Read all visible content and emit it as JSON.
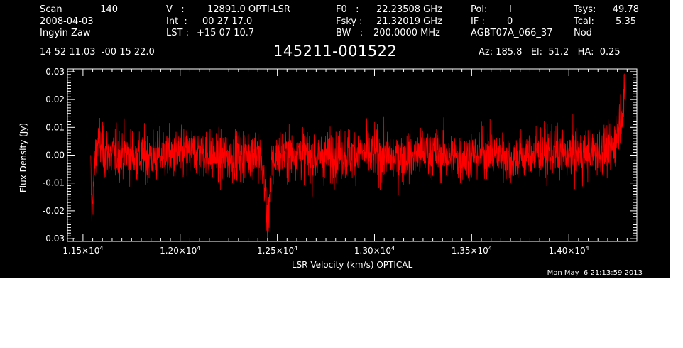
{
  "header": {
    "col1": {
      "scan_label": "Scan",
      "scan_value": "140",
      "date": "2008-04-03",
      "observer": "Ingyin Zaw"
    },
    "col2": {
      "v_label": "V   :",
      "v_value": "12891.0 OPTI-LSR",
      "int_label": "Int  :",
      "int_value": "00 27 17.0",
      "lst_label": "LST :",
      "lst_value": "+15 07 10.7"
    },
    "col3": {
      "f0_label": "F0   :",
      "f0_value": "22.23508 GHz",
      "fsky_label": "Fsky :",
      "fsky_value": "21.32019 GHz",
      "bw_label": "BW   :",
      "bw_value": "200.0000 MHz"
    },
    "col4": {
      "pol_label": "Pol:",
      "pol_value": "I",
      "if_label": "IF :",
      "if_value": "0",
      "project": "AGBT07A_066_37"
    },
    "col5": {
      "tsys_label": "Tsys:",
      "tsys_value": "49.78",
      "tcal_label": "Tcal:",
      "tcal_value": "5.35",
      "mode": "Nod"
    },
    "coords": "14 52 11.03  -00 15 22.0",
    "source": "145211-001522",
    "pointing": "Az: 185.8   El:  51.2   HA:  0.25"
  },
  "timestamp": "Mon May  6 21:13:59 2013",
  "colors": {
    "background": "#000000",
    "trace": "#ff0000",
    "axes": "#ffffff"
  },
  "chart_data": {
    "type": "line",
    "xlabel": "LSR Velocity (km/s) OPTICAL",
    "ylabel": "Flux Density (Jy)",
    "xlim": [
      11420,
      14350
    ],
    "ylim": [
      -0.031,
      0.031
    ],
    "x_ticks": [
      {
        "value": 11500,
        "mantissa": "1.15×10",
        "exp": "4"
      },
      {
        "value": 12000,
        "mantissa": "1.20×10",
        "exp": "4"
      },
      {
        "value": 12500,
        "mantissa": "1.25×10",
        "exp": "4"
      },
      {
        "value": 13000,
        "mantissa": "1.30×10",
        "exp": "4"
      },
      {
        "value": 13500,
        "mantissa": "1.35×10",
        "exp": "4"
      },
      {
        "value": 14000,
        "mantissa": "1.40×10",
        "exp": "4"
      }
    ],
    "y_ticks": [
      {
        "value": -0.03,
        "label": "-0.03"
      },
      {
        "value": -0.02,
        "label": "-0.02"
      },
      {
        "value": -0.01,
        "label": "-0.01"
      },
      {
        "value": 0.0,
        "label": "0.00"
      },
      {
        "value": 0.01,
        "label": "0.01"
      },
      {
        "value": 0.02,
        "label": "0.02"
      },
      {
        "value": 0.03,
        "label": "0.03"
      }
    ],
    "series": [
      {
        "color": "#ff0000",
        "x": [
          11540,
          11545,
          11552,
          11560,
          11570,
          11585,
          11600,
          11650,
          11700,
          11800,
          11900,
          12000,
          12100,
          12200,
          12300,
          12400,
          12430,
          12450,
          12470,
          12500,
          12600,
          12700,
          12800,
          12900,
          13000,
          13100,
          13200,
          13300,
          13400,
          13500,
          13600,
          13700,
          13800,
          13900,
          14000,
          14100,
          14150,
          14200,
          14230,
          14250,
          14270,
          14290
        ],
        "y": [
          -0.006,
          -0.021,
          -0.012,
          -0.004,
          0.003,
          0.006,
          0.001,
          0.0,
          0.001,
          -0.001,
          0.0,
          0.0,
          0.001,
          -0.001,
          0.0,
          0.001,
          -0.007,
          -0.025,
          -0.004,
          0.0,
          0.001,
          -0.001,
          0.0,
          0.001,
          0.0,
          -0.001,
          0.0,
          0.001,
          -0.001,
          0.0,
          0.001,
          -0.001,
          0.0,
          0.001,
          0.0,
          0.001,
          0.002,
          0.001,
          0.004,
          0.009,
          0.016,
          0.02
        ],
        "noise_rms": 0.0045
      }
    ]
  }
}
